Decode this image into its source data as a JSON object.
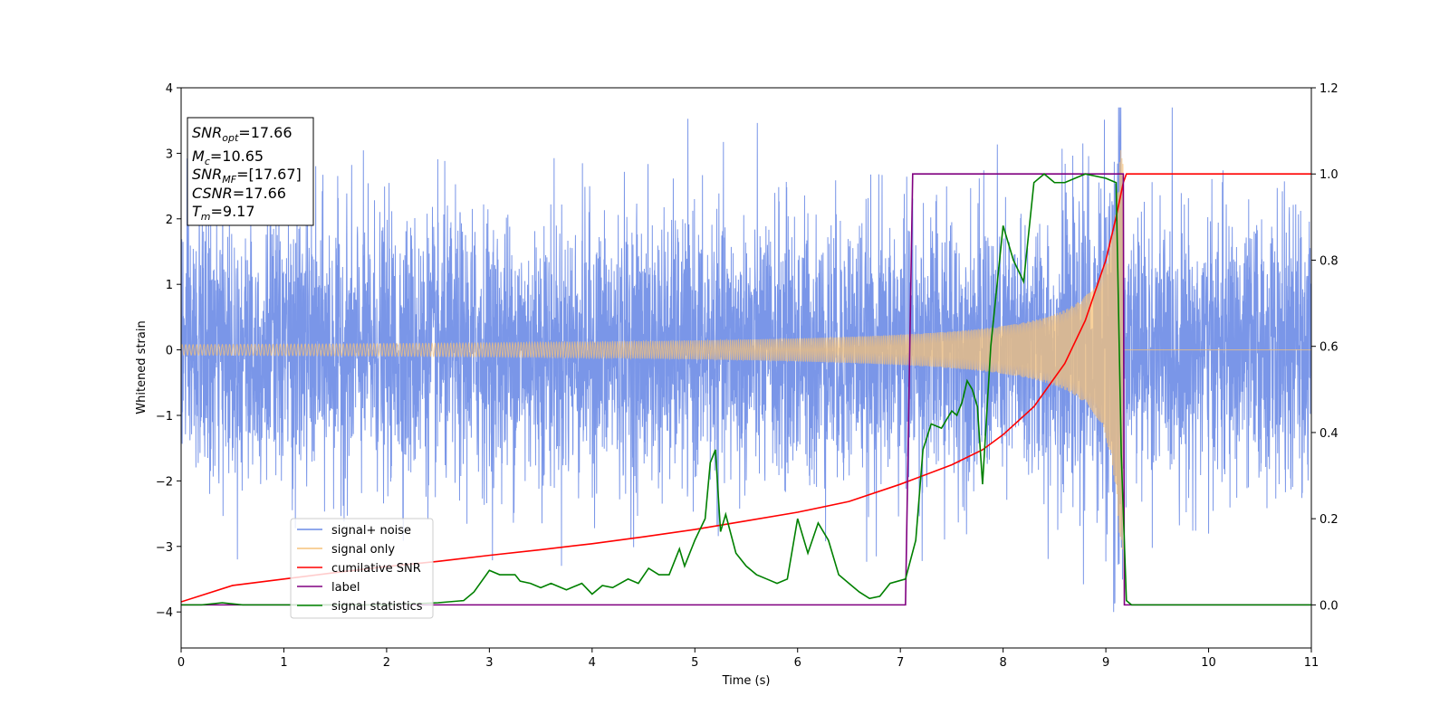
{
  "chart_data": {
    "type": "line",
    "xlabel": "Time (s)",
    "ylabel": "Whitened strain",
    "xlim": [
      0,
      11
    ],
    "ylim_left": [
      -4.55,
      4
    ],
    "ylim_right": [
      -0.1,
      1.2
    ],
    "x_ticks": [
      0,
      1,
      2,
      3,
      4,
      5,
      6,
      7,
      8,
      9,
      10,
      11
    ],
    "y_ticks_left": [
      -4,
      -3,
      -2,
      -1,
      0,
      1,
      2,
      3,
      4
    ],
    "y_ticks_left_labels": [
      "−4",
      "−3",
      "−2",
      "−1",
      "0",
      "1",
      "2",
      "3",
      "4"
    ],
    "y_ticks_right": [
      0.0,
      0.2,
      0.4,
      0.6,
      0.8,
      1.0,
      1.2
    ],
    "y_ticks_right_labels": [
      "0.0",
      "0.2",
      "0.4",
      "0.6",
      "0.8",
      "1.0",
      "1.2"
    ],
    "grid": false,
    "legend_position": "lower-left",
    "annotation": {
      "snr_opt": {
        "base": "SNR",
        "sub": "opt",
        "value": "=17.66"
      },
      "mc": {
        "base": "M",
        "sub": "c",
        "value": "=10.65"
      },
      "snr_mf": {
        "base": "SNR",
        "sub": "MF",
        "value": "=[17.67]"
      },
      "csnr": {
        "base": "CSNR",
        "value": "=17.66"
      },
      "tm": {
        "base": "T",
        "sub": "m",
        "value": "=9.17"
      }
    },
    "series": [
      {
        "name": "signal+ noise",
        "axis": "left",
        "color": "#6b8be5",
        "description_values": {
          "noise_sigma": 1.0,
          "x_start": 0,
          "x_end": 11
        }
      },
      {
        "name": "signal only",
        "axis": "left",
        "color": "#f5c27a",
        "chirp": {
          "t_merge": 9.17,
          "amp_start": 0.08,
          "amp_peak": 3.05,
          "freq_start": 28,
          "freq_end": 95
        }
      },
      {
        "name": "cumilative SNR",
        "axis": "right",
        "color": "#ff0000",
        "x": [
          0,
          0.5,
          1,
          1.5,
          2,
          2.5,
          3,
          3.5,
          4,
          4.5,
          5,
          5.5,
          6,
          6.5,
          7,
          7.5,
          7.8,
          8,
          8.3,
          8.6,
          8.8,
          9,
          9.1,
          9.17,
          9.2,
          11
        ],
        "values": [
          0.007,
          0.045,
          0.06,
          0.075,
          0.089,
          0.101,
          0.115,
          0.128,
          0.142,
          0.158,
          0.175,
          0.195,
          0.215,
          0.24,
          0.28,
          0.325,
          0.36,
          0.395,
          0.46,
          0.56,
          0.66,
          0.8,
          0.9,
          0.98,
          1.0,
          1.0
        ]
      },
      {
        "name": "label",
        "axis": "right",
        "color": "#800080",
        "x": [
          0,
          7.05,
          7.12,
          9.17,
          9.18,
          11
        ],
        "values": [
          0.0,
          0.0,
          1.0,
          1.0,
          0.0,
          0.0
        ]
      },
      {
        "name": "signal statistics",
        "axis": "right",
        "color": "#008000",
        "x": [
          0,
          0.2,
          0.4,
          0.6,
          1.0,
          2.0,
          2.5,
          2.75,
          2.85,
          3.0,
          3.1,
          3.25,
          3.3,
          3.4,
          3.5,
          3.6,
          3.75,
          3.9,
          4.0,
          4.1,
          4.2,
          4.35,
          4.45,
          4.55,
          4.65,
          4.75,
          4.85,
          4.9,
          5.0,
          5.1,
          5.15,
          5.2,
          5.25,
          5.3,
          5.4,
          5.5,
          5.6,
          5.7,
          5.8,
          5.9,
          6.0,
          6.1,
          6.2,
          6.3,
          6.4,
          6.5,
          6.6,
          6.7,
          6.8,
          6.9,
          7.05,
          7.15,
          7.22,
          7.3,
          7.4,
          7.5,
          7.55,
          7.6,
          7.65,
          7.7,
          7.75,
          7.8,
          7.88,
          8.0,
          8.1,
          8.2,
          8.3,
          8.4,
          8.5,
          8.6,
          8.8,
          9.0,
          9.1,
          9.15,
          9.2,
          9.25,
          11
        ],
        "values": [
          0.0,
          0.0,
          0.005,
          0.0,
          0.0,
          0.0,
          0.005,
          0.01,
          0.03,
          0.08,
          0.07,
          0.07,
          0.055,
          0.05,
          0.04,
          0.05,
          0.035,
          0.05,
          0.025,
          0.045,
          0.04,
          0.06,
          0.05,
          0.085,
          0.07,
          0.07,
          0.13,
          0.09,
          0.15,
          0.2,
          0.33,
          0.36,
          0.17,
          0.21,
          0.12,
          0.09,
          0.07,
          0.06,
          0.05,
          0.06,
          0.2,
          0.12,
          0.19,
          0.15,
          0.07,
          0.05,
          0.03,
          0.015,
          0.02,
          0.05,
          0.06,
          0.15,
          0.36,
          0.42,
          0.41,
          0.45,
          0.44,
          0.47,
          0.52,
          0.5,
          0.46,
          0.28,
          0.6,
          0.88,
          0.8,
          0.75,
          0.98,
          1.0,
          0.98,
          0.98,
          1.0,
          0.99,
          0.98,
          0.35,
          0.01,
          0.0,
          0.0
        ]
      }
    ]
  }
}
